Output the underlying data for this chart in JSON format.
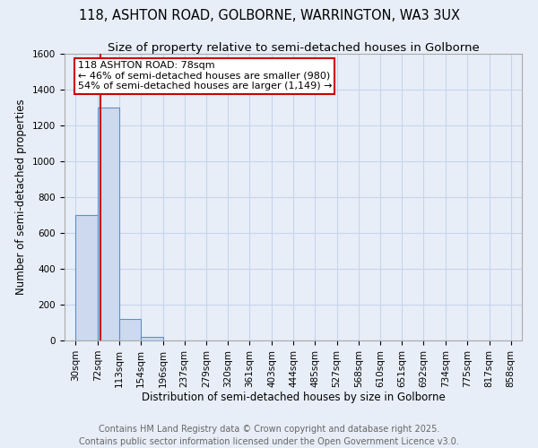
{
  "title": "118, ASHTON ROAD, GOLBORNE, WARRINGTON, WA3 3UX",
  "subtitle": "Size of property relative to semi-detached houses in Golborne",
  "xlabel": "Distribution of semi-detached houses by size in Golborne",
  "ylabel": "Number of semi-detached properties",
  "property_size": 78,
  "bin_edges": [
    30,
    72,
    113,
    154,
    196,
    237,
    279,
    320,
    361,
    403,
    444,
    485,
    527,
    568,
    610,
    651,
    692,
    734,
    775,
    817,
    858
  ],
  "bin_labels": [
    "30sqm",
    "72sqm",
    "113sqm",
    "154sqm",
    "196sqm",
    "237sqm",
    "279sqm",
    "320sqm",
    "361sqm",
    "403sqm",
    "444sqm",
    "485sqm",
    "527sqm",
    "568sqm",
    "610sqm",
    "651sqm",
    "692sqm",
    "734sqm",
    "775sqm",
    "817sqm",
    "858sqm"
  ],
  "counts": [
    700,
    1300,
    120,
    20,
    0,
    0,
    0,
    0,
    0,
    0,
    0,
    0,
    0,
    0,
    0,
    0,
    0,
    0,
    0,
    0
  ],
  "bar_color": "#ccd9ee",
  "bar_edge_color": "#6090c8",
  "bar_edge_width": 0.8,
  "vline_color": "#cc0000",
  "vline_x": 78,
  "annotation_line1": "118 ASHTON ROAD: 78sqm",
  "annotation_line2": "← 46% of semi-detached houses are smaller (980)",
  "annotation_line3": "54% of semi-detached houses are larger (1,149) →",
  "annotation_box_color": "#ffffff",
  "annotation_box_edge_color": "#cc0000",
  "ylim": [
    0,
    1600
  ],
  "yticks": [
    0,
    200,
    400,
    600,
    800,
    1000,
    1200,
    1400,
    1600
  ],
  "grid_color": "#c5d5ec",
  "background_color": "#e8eef8",
  "plot_bg_color": "#e8eef8",
  "footer_line1": "Contains HM Land Registry data © Crown copyright and database right 2025.",
  "footer_line2": "Contains public sector information licensed under the Open Government Licence v3.0.",
  "title_fontsize": 10.5,
  "subtitle_fontsize": 9.5,
  "annotation_fontsize": 8,
  "footer_fontsize": 7,
  "ylabel_fontsize": 8.5,
  "xlabel_fontsize": 8.5,
  "tick_fontsize": 7.5
}
